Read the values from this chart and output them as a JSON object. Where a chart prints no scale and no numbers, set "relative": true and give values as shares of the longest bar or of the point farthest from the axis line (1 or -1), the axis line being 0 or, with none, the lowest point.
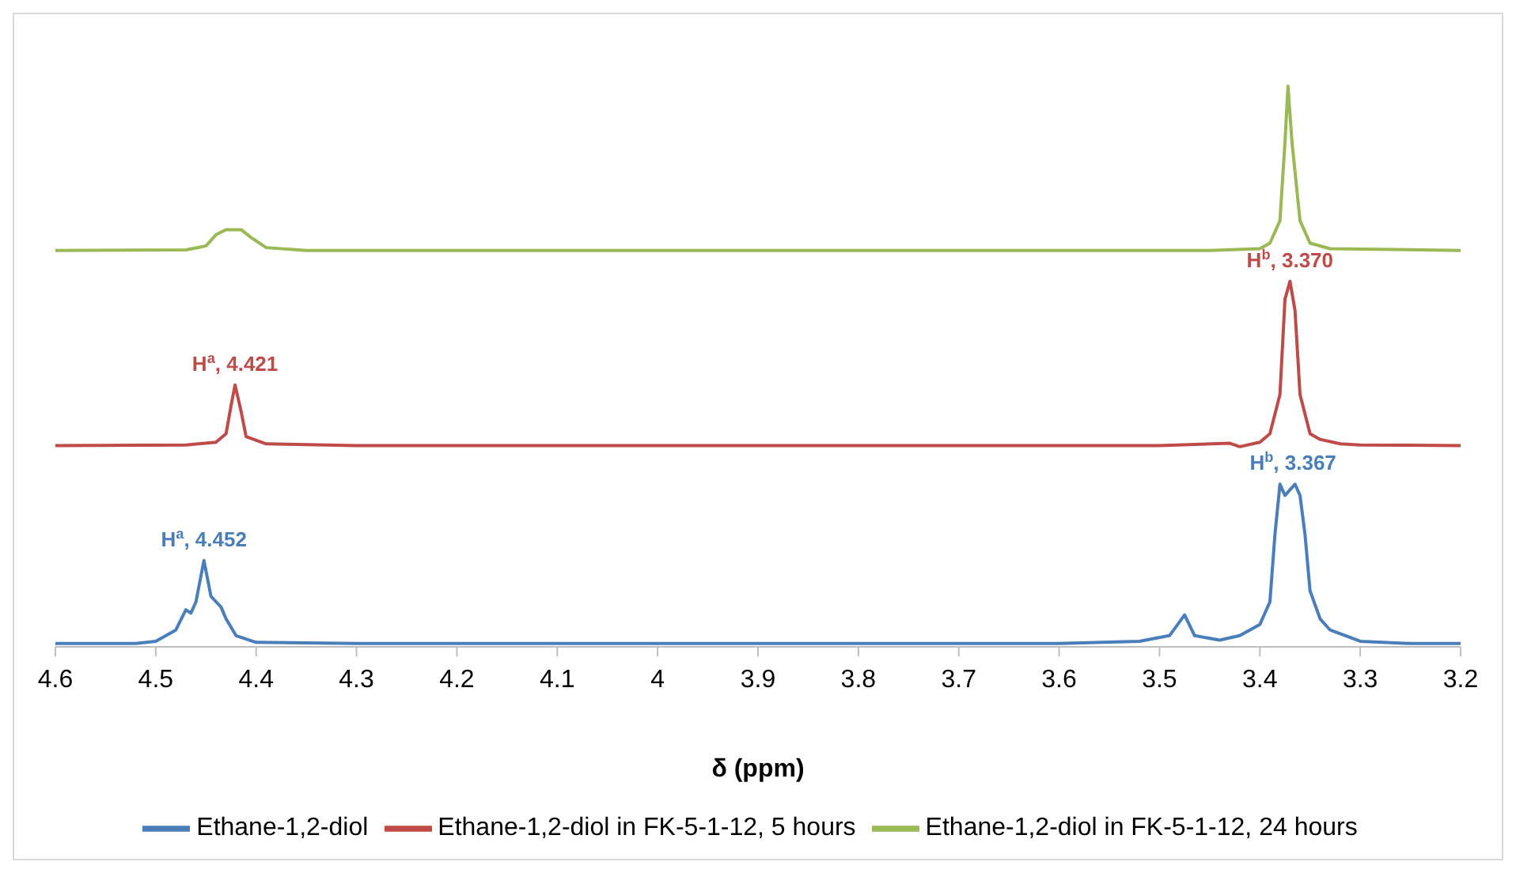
{
  "chart_data": {
    "type": "line",
    "relative": true,
    "xlabel": "δ (ppm)",
    "xlim": [
      4.6,
      3.2
    ],
    "xticks": [
      4.6,
      4.5,
      4.4,
      4.3,
      4.2,
      4.1,
      4,
      3.9,
      3.8,
      3.7,
      3.6,
      3.5,
      3.4,
      3.3,
      3.2
    ],
    "legend": "bottom",
    "marker": "none",
    "line_style": "solid",
    "annotations": [
      {
        "text": "H$^{a}$, 4.452",
        "x": 4.452,
        "y": 0.154
      },
      {
        "text": "H$^{b}$, 3.367",
        "x": 3.367,
        "y": 0.29
      },
      {
        "text": "H$^{a}$, 4.421",
        "x": 4.421,
        "y": 0.467
      },
      {
        "text": "H$^{b}$, 3.370",
        "x": 3.37,
        "y": 0.652
      }
    ],
    "series": [
      {
        "name": "Ethane-1,2-diol",
        "color": "#4a7ebb",
        "x": [
          4.6,
          4.52,
          4.5,
          4.48,
          4.47,
          4.465,
          4.46,
          4.452,
          4.445,
          4.435,
          4.43,
          4.42,
          4.4,
          4.3,
          4.0,
          3.6,
          3.52,
          3.49,
          3.475,
          3.465,
          3.44,
          3.42,
          3.4,
          3.39,
          3.385,
          3.38,
          3.375,
          3.37,
          3.365,
          3.36,
          3.355,
          3.35,
          3.34,
          3.33,
          3.3,
          3.25,
          3.2
        ],
        "values": [
          0.006,
          0.006,
          0.01,
          0.03,
          0.066,
          0.06,
          0.08,
          0.154,
          0.09,
          0.071,
          0.05,
          0.02,
          0.008,
          0.006,
          0.006,
          0.006,
          0.01,
          0.02,
          0.057,
          0.02,
          0.012,
          0.02,
          0.04,
          0.08,
          0.2,
          0.29,
          0.27,
          0.28,
          0.29,
          0.27,
          0.2,
          0.1,
          0.05,
          0.03,
          0.01,
          0.006,
          0.006
        ]
      },
      {
        "name": "Ethane-1,2-diol in FK-5-1-12, 5 hours",
        "color": "#be4b48",
        "x": [
          4.6,
          4.47,
          4.44,
          4.43,
          4.425,
          4.421,
          4.415,
          4.41,
          4.39,
          4.3,
          3.5,
          3.43,
          3.42,
          3.4,
          3.39,
          3.38,
          3.375,
          3.37,
          3.365,
          3.36,
          3.35,
          3.34,
          3.32,
          3.3,
          3.2
        ],
        "values": [
          0.359,
          0.36,
          0.365,
          0.38,
          0.43,
          0.467,
          0.42,
          0.375,
          0.362,
          0.359,
          0.359,
          0.363,
          0.357,
          0.365,
          0.38,
          0.45,
          0.62,
          0.652,
          0.6,
          0.45,
          0.38,
          0.37,
          0.362,
          0.36,
          0.359
        ]
      },
      {
        "name": "Ethane-1,2-diol in FK-5-1-12, 24 hours",
        "color": "#98b954",
        "x": [
          4.6,
          4.47,
          4.45,
          4.44,
          4.43,
          4.415,
          4.405,
          4.39,
          4.35,
          3.45,
          3.4,
          3.39,
          3.38,
          3.375,
          3.372,
          3.368,
          3.36,
          3.35,
          3.33,
          3.2
        ],
        "values": [
          0.707,
          0.708,
          0.715,
          0.735,
          0.744,
          0.744,
          0.73,
          0.712,
          0.707,
          0.707,
          0.71,
          0.72,
          0.76,
          0.9,
          1,
          0.9,
          0.76,
          0.72,
          0.71,
          0.707
        ]
      }
    ]
  }
}
